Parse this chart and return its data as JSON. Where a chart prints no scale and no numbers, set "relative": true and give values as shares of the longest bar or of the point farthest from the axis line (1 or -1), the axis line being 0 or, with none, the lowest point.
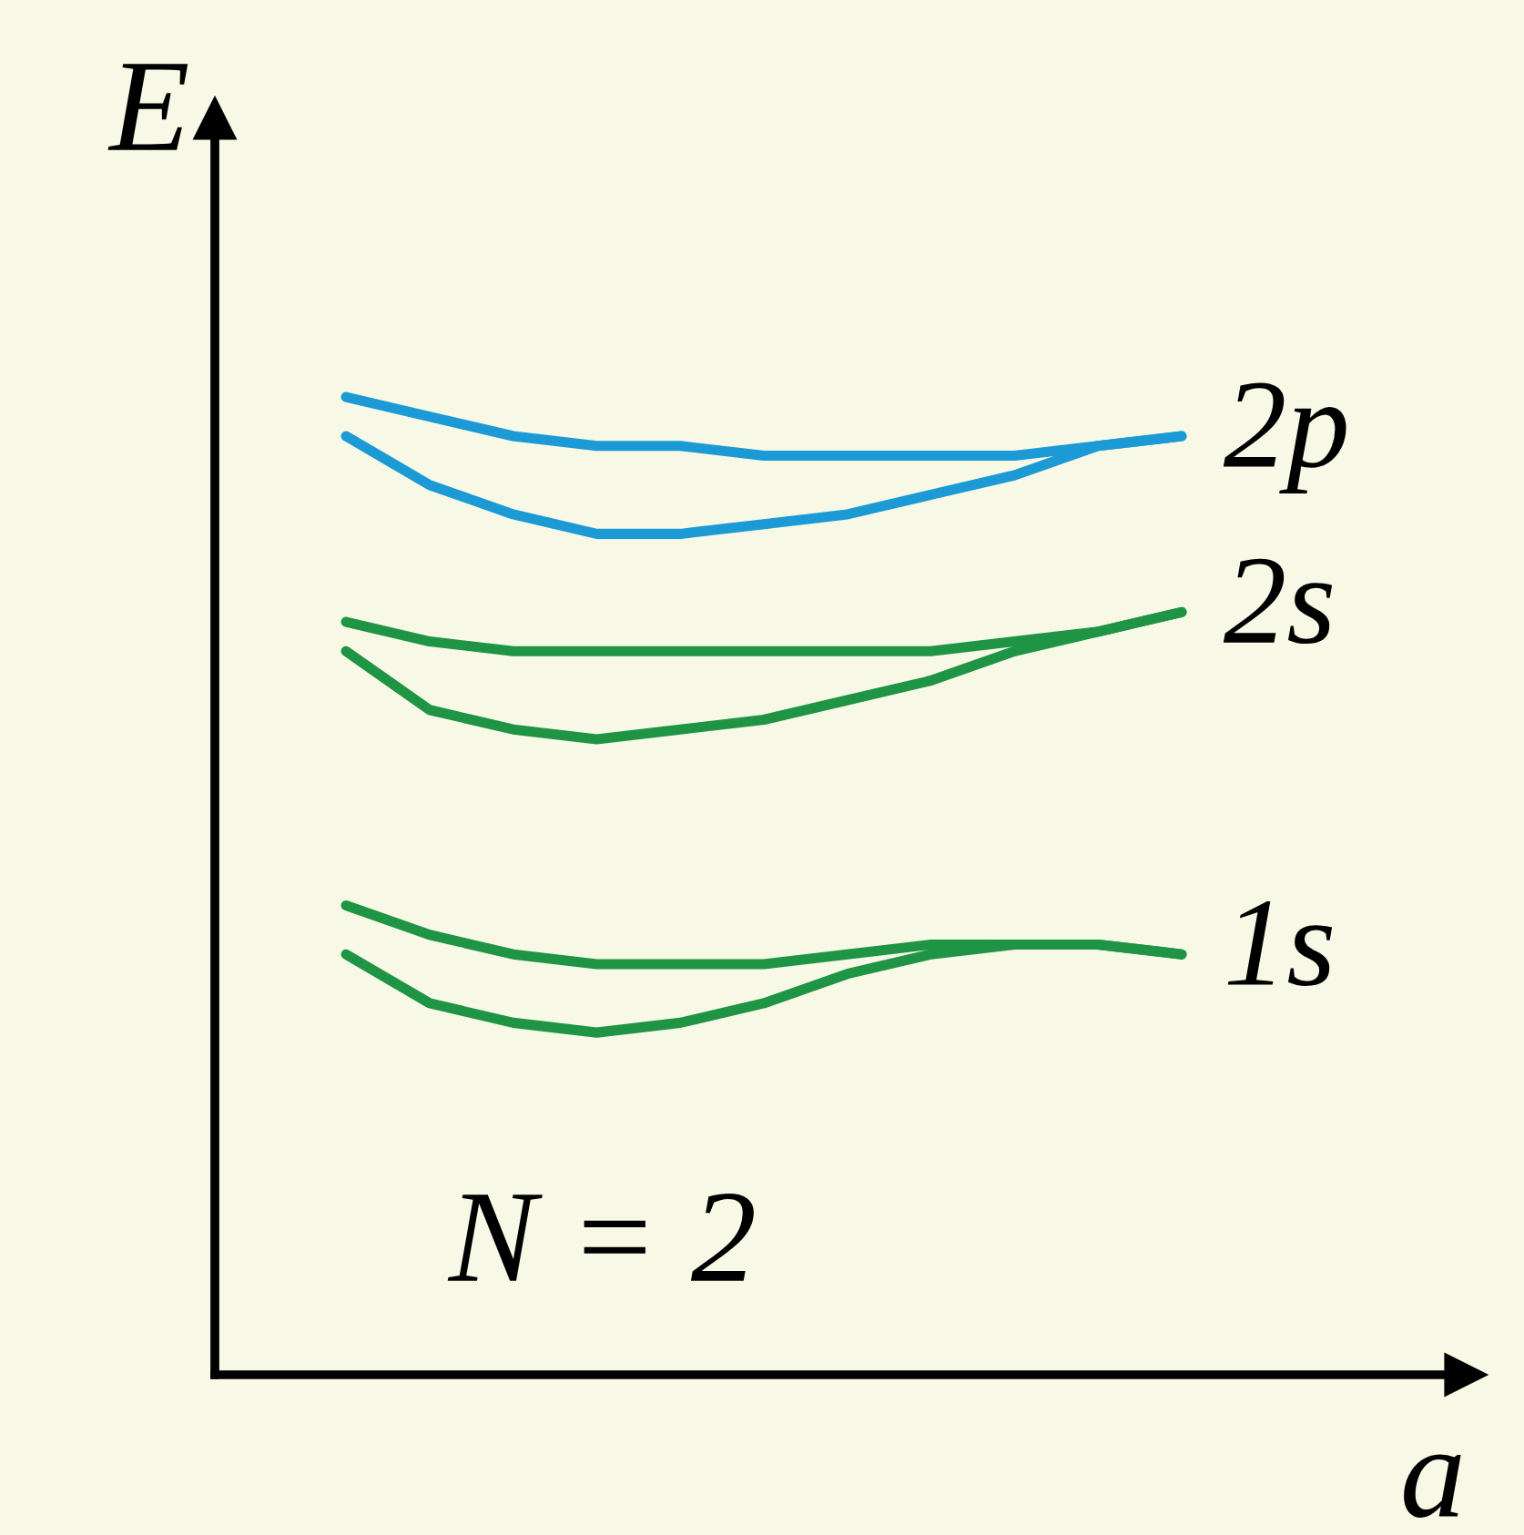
{
  "chart_data": {
    "type": "line",
    "relative": true,
    "xlabel": "a",
    "ylabel": "E",
    "annotations": [
      "N = 2"
    ],
    "categories": [
      null,
      null,
      null,
      null,
      null,
      null,
      null,
      null,
      null,
      null,
      null
    ],
    "series": [
      {
        "name": "2p",
        "color": "#1b9ad6",
        "values": [
          1.0,
          0.98,
          0.96,
          0.95,
          0.95,
          0.94,
          0.94,
          0.94,
          0.94,
          0.95,
          0.96
        ]
      },
      {
        "color": "#1b9ad6",
        "values": [
          0.96,
          0.91,
          0.88,
          0.86,
          0.86,
          0.87,
          0.88,
          0.9,
          0.92,
          0.95,
          0.96
        ]
      },
      {
        "name": "2s",
        "color": "#1e9444",
        "values": [
          0.77,
          0.75,
          0.74,
          0.74,
          0.74,
          0.74,
          0.74,
          0.74,
          0.75,
          0.76,
          0.78
        ]
      },
      {
        "color": "#1e9444",
        "values": [
          0.74,
          0.68,
          0.66,
          0.65,
          0.66,
          0.67,
          0.69,
          0.71,
          0.74,
          0.76,
          0.78
        ]
      },
      {
        "name": "1s",
        "color": "#1e9444",
        "values": [
          0.48,
          0.45,
          0.43,
          0.42,
          0.42,
          0.42,
          0.43,
          0.44,
          0.44,
          0.44,
          0.43
        ]
      },
      {
        "color": "#1e9444",
        "values": [
          0.43,
          0.38,
          0.36,
          0.35,
          0.36,
          0.38,
          0.41,
          0.43,
          0.44,
          0.44,
          0.43
        ]
      }
    ]
  }
}
